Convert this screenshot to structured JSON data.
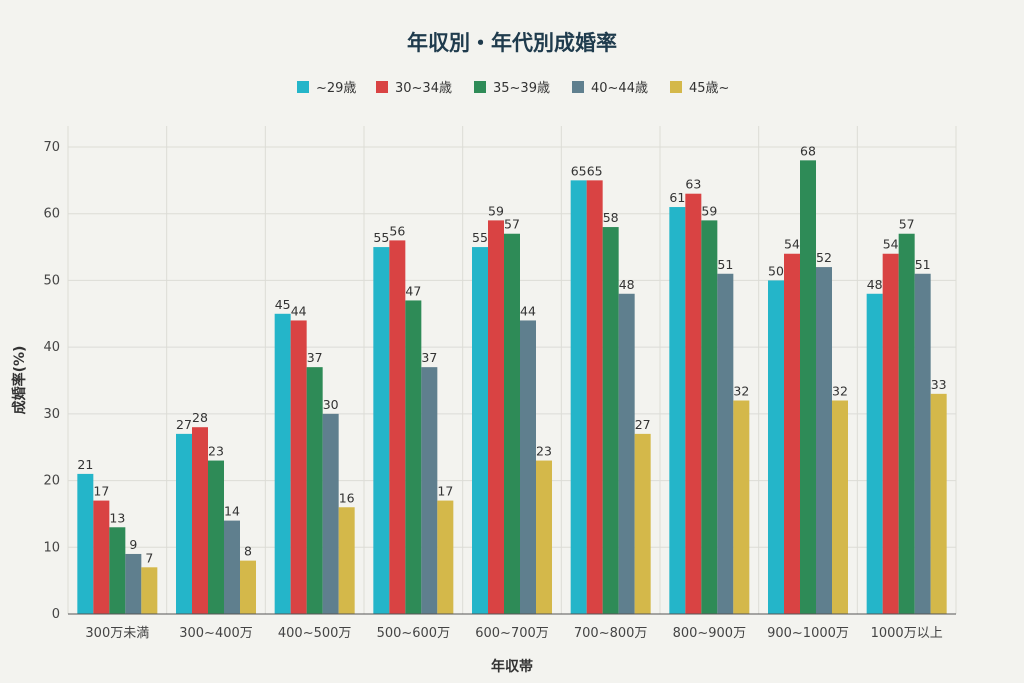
{
  "chart_data": {
    "type": "bar",
    "title": "年収別・年代別成婚率",
    "xlabel": "年収帯",
    "ylabel": "成婚率(%)",
    "ylim": [
      0,
      70
    ],
    "yticks": [
      0,
      10,
      20,
      30,
      40,
      50,
      60,
      70
    ],
    "grid": true,
    "legend_position": "top-center",
    "categories": [
      "300万未満",
      "300~400万",
      "400~500万",
      "500~600万",
      "600~700万",
      "700~800万",
      "800~900万",
      "900~1000万",
      "1000万以上"
    ],
    "series": [
      {
        "name": "~29歳",
        "color": "#24b5c9",
        "values": [
          21,
          27,
          45,
          55,
          55,
          65,
          61,
          50,
          48
        ]
      },
      {
        "name": "30~34歳",
        "color": "#d94343",
        "values": [
          17,
          28,
          44,
          56,
          59,
          65,
          63,
          54,
          54
        ]
      },
      {
        "name": "35~39歳",
        "color": "#2e8b57",
        "values": [
          13,
          23,
          37,
          47,
          57,
          58,
          59,
          68,
          57
        ]
      },
      {
        "name": "40~44歳",
        "color": "#5f7f8e",
        "values": [
          9,
          14,
          30,
          37,
          44,
          48,
          51,
          52,
          51
        ]
      },
      {
        "name": "45歳~",
        "color": "#d4b84a",
        "values": [
          7,
          8,
          16,
          17,
          23,
          27,
          32,
          32,
          33
        ]
      }
    ]
  }
}
